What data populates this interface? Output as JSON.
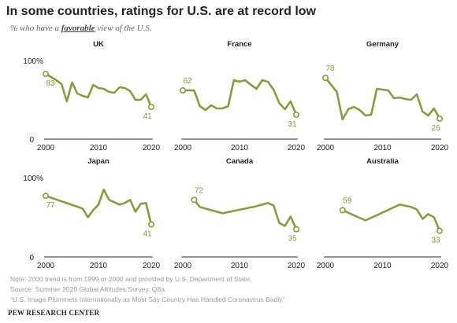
{
  "header": {
    "title": "In some countries, ratings for U.S. are at record low",
    "subtitle_pre": "% who have a ",
    "subtitle_em": "favorable",
    "subtitle_post": " view of the U.S."
  },
  "footer": {
    "note1": "Note: 2000 trend is from 1999 or 2000 and provided by U.S. Department of State.",
    "note2": "Source: Summer 2020 Global Attitudes Survey. Q8a.",
    "note3": "“U.S. Image Plummets Internationally as Most Say Country Has Handled Coronavirus Badly”",
    "source": "PEW RESEARCH CENTER"
  },
  "colors": {
    "line": "#8a9a3c",
    "axis": "#333333",
    "text": "#222222",
    "muted": "#888888"
  },
  "chart_data": [
    {
      "type": "line",
      "title": "UK",
      "ylim": [
        0,
        100
      ],
      "xlim": [
        2000,
        2020
      ],
      "x_ticks": [
        "2000",
        "2010",
        "2020"
      ],
      "y_ticks": [
        "0",
        "100%"
      ],
      "x": [
        2000,
        2002,
        2003,
        2004,
        2005,
        2006,
        2007,
        2008,
        2009,
        2010,
        2011,
        2012,
        2013,
        2014,
        2015,
        2016,
        2017,
        2018,
        2019,
        2020
      ],
      "values": [
        83,
        75,
        70,
        48,
        72,
        58,
        55,
        53,
        69,
        65,
        64,
        60,
        59,
        66,
        65,
        61,
        50,
        50,
        57,
        41
      ],
      "labels": [
        {
          "x": 2000,
          "text": "83"
        },
        {
          "x": 2020,
          "text": "41"
        }
      ]
    },
    {
      "type": "line",
      "title": "France",
      "ylim": [
        0,
        100
      ],
      "xlim": [
        2000,
        2020
      ],
      "x_ticks": [
        "2000",
        "2010",
        "2020"
      ],
      "x": [
        2000,
        2002,
        2003,
        2004,
        2005,
        2006,
        2007,
        2008,
        2009,
        2010,
        2011,
        2012,
        2013,
        2014,
        2015,
        2016,
        2017,
        2018,
        2019,
        2020
      ],
      "values": [
        62,
        62,
        42,
        37,
        43,
        39,
        39,
        42,
        75,
        73,
        75,
        69,
        64,
        75,
        73,
        63,
        46,
        38,
        48,
        31
      ],
      "labels": [
        {
          "x": 2000,
          "text": "62"
        },
        {
          "x": 2020,
          "text": "31"
        }
      ]
    },
    {
      "type": "line",
      "title": "Germany",
      "ylim": [
        0,
        100
      ],
      "xlim": [
        2000,
        2020
      ],
      "x_ticks": [
        "2000",
        "2010",
        "2020"
      ],
      "x": [
        2000,
        2002,
        2003,
        2004,
        2005,
        2006,
        2007,
        2008,
        2009,
        2010,
        2011,
        2012,
        2013,
        2014,
        2015,
        2016,
        2017,
        2018,
        2019,
        2020
      ],
      "values": [
        78,
        60,
        25,
        38,
        41,
        37,
        30,
        31,
        64,
        63,
        62,
        52,
        53,
        51,
        50,
        57,
        35,
        30,
        39,
        26
      ],
      "labels": [
        {
          "x": 2000,
          "text": "78"
        },
        {
          "x": 2020,
          "text": "26"
        }
      ]
    },
    {
      "type": "line",
      "title": "Japan",
      "ylim": [
        0,
        100
      ],
      "xlim": [
        2000,
        2020
      ],
      "x_ticks": [
        "2000",
        "2010",
        "2020"
      ],
      "y_ticks": [
        "0",
        "100%"
      ],
      "x": [
        2000,
        2007,
        2008,
        2009,
        2010,
        2011,
        2012,
        2013,
        2014,
        2015,
        2016,
        2017,
        2018,
        2019,
        2020
      ],
      "values": [
        77,
        61,
        50,
        59,
        66,
        85,
        72,
        69,
        66,
        68,
        72,
        57,
        67,
        68,
        41
      ],
      "labels": [
        {
          "x": 2000,
          "text": "77"
        },
        {
          "x": 2020,
          "text": "41"
        }
      ]
    },
    {
      "type": "line",
      "title": "Canada",
      "ylim": [
        0,
        100
      ],
      "xlim": [
        2000,
        2020
      ],
      "x_ticks": [
        "2000",
        "2010",
        "2020"
      ],
      "x": [
        2002,
        2003,
        2007,
        2013,
        2015,
        2016,
        2017,
        2018,
        2019,
        2020
      ],
      "values": [
        72,
        63,
        55,
        64,
        68,
        65,
        43,
        39,
        51,
        35
      ],
      "labels": [
        {
          "x": 2002,
          "text": "72"
        },
        {
          "x": 2020,
          "text": "35"
        }
      ]
    },
    {
      "type": "line",
      "title": "Australia",
      "ylim": [
        0,
        100
      ],
      "xlim": [
        2000,
        2020
      ],
      "x_ticks": [
        "2000",
        "2010",
        "2020"
      ],
      "x": [
        2003,
        2007,
        2013,
        2015,
        2016,
        2017,
        2018,
        2019,
        2020
      ],
      "values": [
        59,
        46,
        66,
        63,
        60,
        48,
        54,
        50,
        33
      ],
      "labels": [
        {
          "x": 2003,
          "text": "59"
        },
        {
          "x": 2020,
          "text": "33"
        }
      ]
    }
  ]
}
